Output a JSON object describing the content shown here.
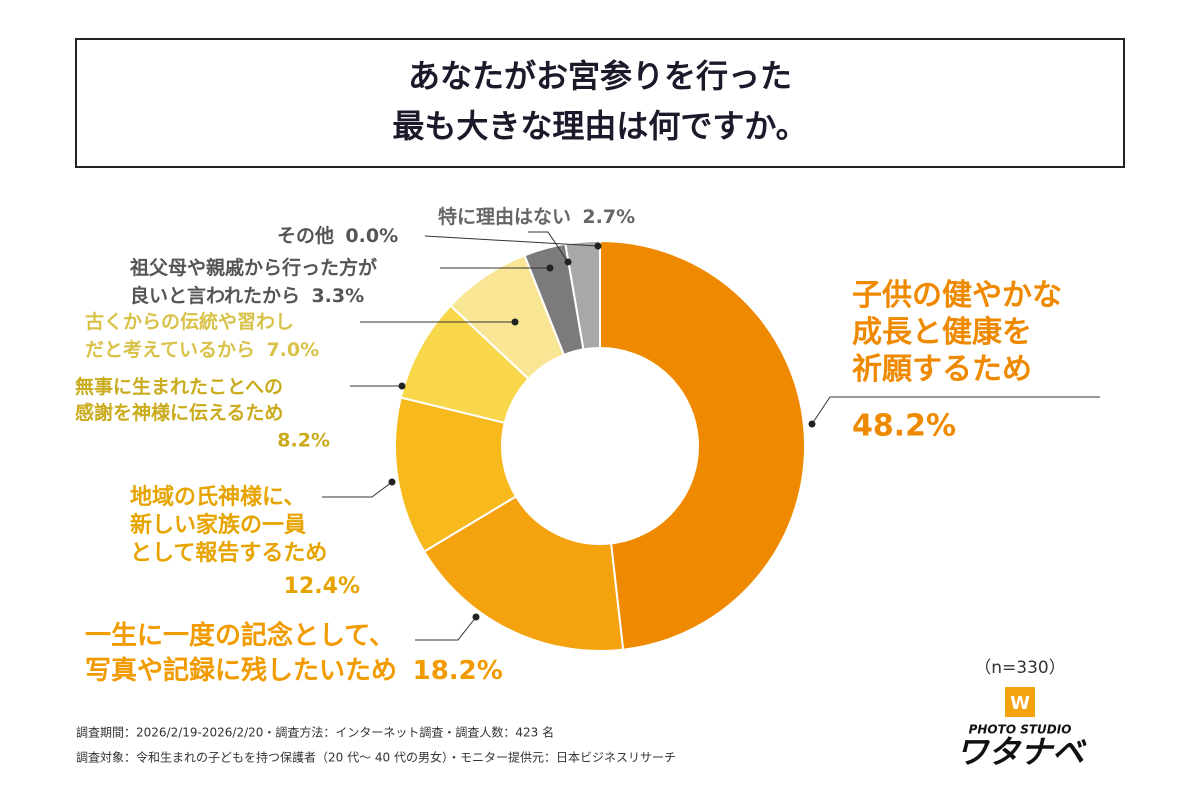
{
  "title": [
    "あなたがお宮参りを行った",
    "最も大きな理由は何ですか。"
  ],
  "chart_data": {
    "type": "donut",
    "categories": [
      [
        "子供の健やかな",
        "成長と健康を",
        "祈願するため"
      ],
      [
        "一生に一度の記念として、",
        "写真や記録に残したいため"
      ],
      [
        "地域の氏神様に、",
        "新しい家族の一員",
        "として報告するため"
      ],
      [
        "無事に生まれたことへの",
        "感謝を神様に伝えるため"
      ],
      [
        "古くからの伝統や習わし",
        "だと考えているから"
      ],
      [
        "祖父母や親戚から行った方が",
        "良いと言われたから"
      ],
      [
        "特に理由はない"
      ],
      [
        "その他"
      ]
    ],
    "values": [
      48.2,
      18.2,
      12.4,
      8.2,
      7.0,
      3.3,
      2.7,
      0.0
    ],
    "value_labels": [
      "48.2%",
      "18.2%",
      "12.4%",
      "8.2%",
      "7.0%",
      "3.3%",
      "2.7%",
      "0.0%"
    ],
    "colors": [
      "#ef8a00",
      "#f5a20f",
      "#f7b91c",
      "#f8d74a",
      "#f9e695",
      "#7c7a7c",
      "#a9a7a9",
      "#cccccc"
    ],
    "label_colors": [
      "#ef8a00",
      "#f29b00",
      "#e7a400",
      "#c9ab1c",
      "#d9c24a",
      "#555555",
      "#666666",
      "#555555"
    ]
  },
  "sample": "（n=330）",
  "notes": [
    "調査期間：2026/2/19-2026/2/20・調査方法：インターネット調査・調査人数：423 名",
    "調査対象：令和生まれの子どもを持つ保護者（20 代〜 40 代の男女）・モニター提供元：日本ビジネスリサーチ"
  ],
  "logo": {
    "small": "PHOTO STUDIO",
    "big": "ワタナベ"
  }
}
